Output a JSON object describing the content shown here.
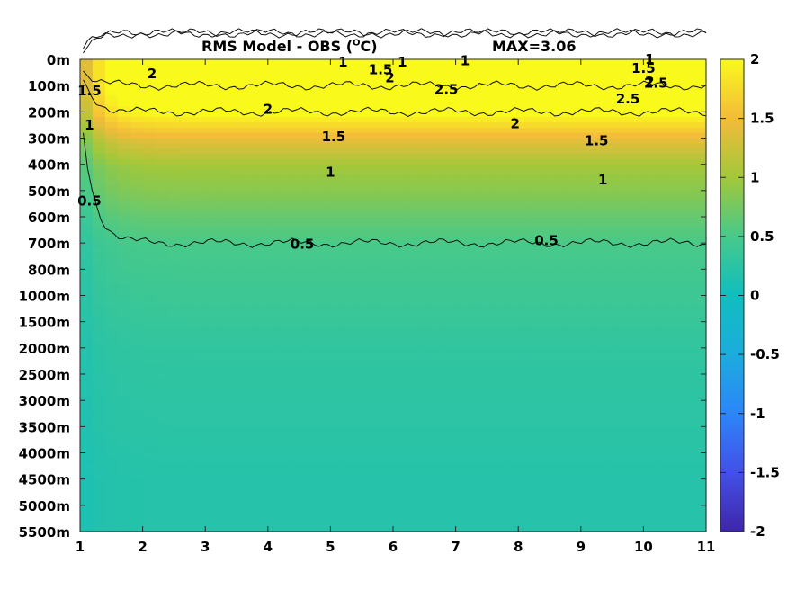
{
  "chart_data": {
    "type": "heatmap",
    "title": "RMS Model - OBS (",
    "title_unit": "O",
    "title_suffix": "C)",
    "max_label": "MAX=3.06",
    "xlabel": "",
    "ylabel": "",
    "x_ticks": [
      "1",
      "2",
      "3",
      "4",
      "5",
      "6",
      "7",
      "8",
      "9",
      "10",
      "11"
    ],
    "xlim": [
      1,
      11
    ],
    "depth_ticks": [
      "0m",
      "100m",
      "200m",
      "300m",
      "400m",
      "500m",
      "600m",
      "700m",
      "800m",
      "1000m",
      "1500m",
      "2000m",
      "2500m",
      "3000m",
      "3500m",
      "4000m",
      "4500m",
      "5000m",
      "5500m"
    ],
    "colorbar": {
      "clim": [
        -2,
        2
      ],
      "ticks": [
        "2",
        "1.5",
        "1",
        "0.5",
        "0",
        "-0.5",
        "-1",
        "-1.5",
        "-2"
      ],
      "colormap": "parula"
    },
    "mean_profile_by_depth": [
      2.3,
      2.3,
      2.0,
      1.4,
      1.0,
      0.85,
      0.65,
      0.5,
      0.45,
      0.4,
      0.35,
      0.3,
      0.28,
      0.26,
      0.25,
      0.22,
      0.2,
      0.2,
      0.2
    ],
    "contours": [
      {
        "level": "0.5",
        "depth": "700m"
      },
      {
        "level": "1",
        "depth": "450m"
      },
      {
        "level": "1.5",
        "depth": "290m"
      },
      {
        "level": "2",
        "depth": "200m"
      },
      {
        "level": "2.5",
        "depth": "100m"
      }
    ],
    "contour_labels": [
      {
        "text": "1.5",
        "x": 1.15,
        "depth": 1.2
      },
      {
        "text": "1",
        "x": 1.15,
        "depth": 2.5
      },
      {
        "text": "0.5",
        "x": 1.15,
        "depth": 5.4
      },
      {
        "text": "2",
        "x": 2.15,
        "depth": 0.55
      },
      {
        "text": "1",
        "x": 5.2,
        "depth": 0.1
      },
      {
        "text": "1.5",
        "x": 5.8,
        "depth": 0.4
      },
      {
        "text": "1",
        "x": 6.15,
        "depth": 0.1
      },
      {
        "text": "2",
        "x": 5.95,
        "depth": 0.7
      },
      {
        "text": "1",
        "x": 7.15,
        "depth": 0.05
      },
      {
        "text": "2.5",
        "x": 6.85,
        "depth": 1.15
      },
      {
        "text": "1",
        "x": 10.1,
        "depth": 0.0
      },
      {
        "text": "1.5",
        "x": 10.0,
        "depth": 0.35
      },
      {
        "text": "2",
        "x": 10.1,
        "depth": 0.85
      },
      {
        "text": "2.5",
        "x": 10.2,
        "depth": 0.9
      },
      {
        "text": "2.5",
        "x": 9.75,
        "depth": 1.5
      },
      {
        "text": "2",
        "x": 4.0,
        "depth": 1.9
      },
      {
        "text": "2",
        "x": 7.95,
        "depth": 2.45
      },
      {
        "text": "1.5",
        "x": 5.05,
        "depth": 2.95
      },
      {
        "text": "1.5",
        "x": 9.25,
        "depth": 3.1
      },
      {
        "text": "1",
        "x": 5.0,
        "depth": 4.3
      },
      {
        "text": "1",
        "x": 9.35,
        "depth": 4.6
      },
      {
        "text": "0.5",
        "x": 4.55,
        "depth": 7.05
      },
      {
        "text": "0.5",
        "x": 8.45,
        "depth": 6.9
      }
    ]
  }
}
